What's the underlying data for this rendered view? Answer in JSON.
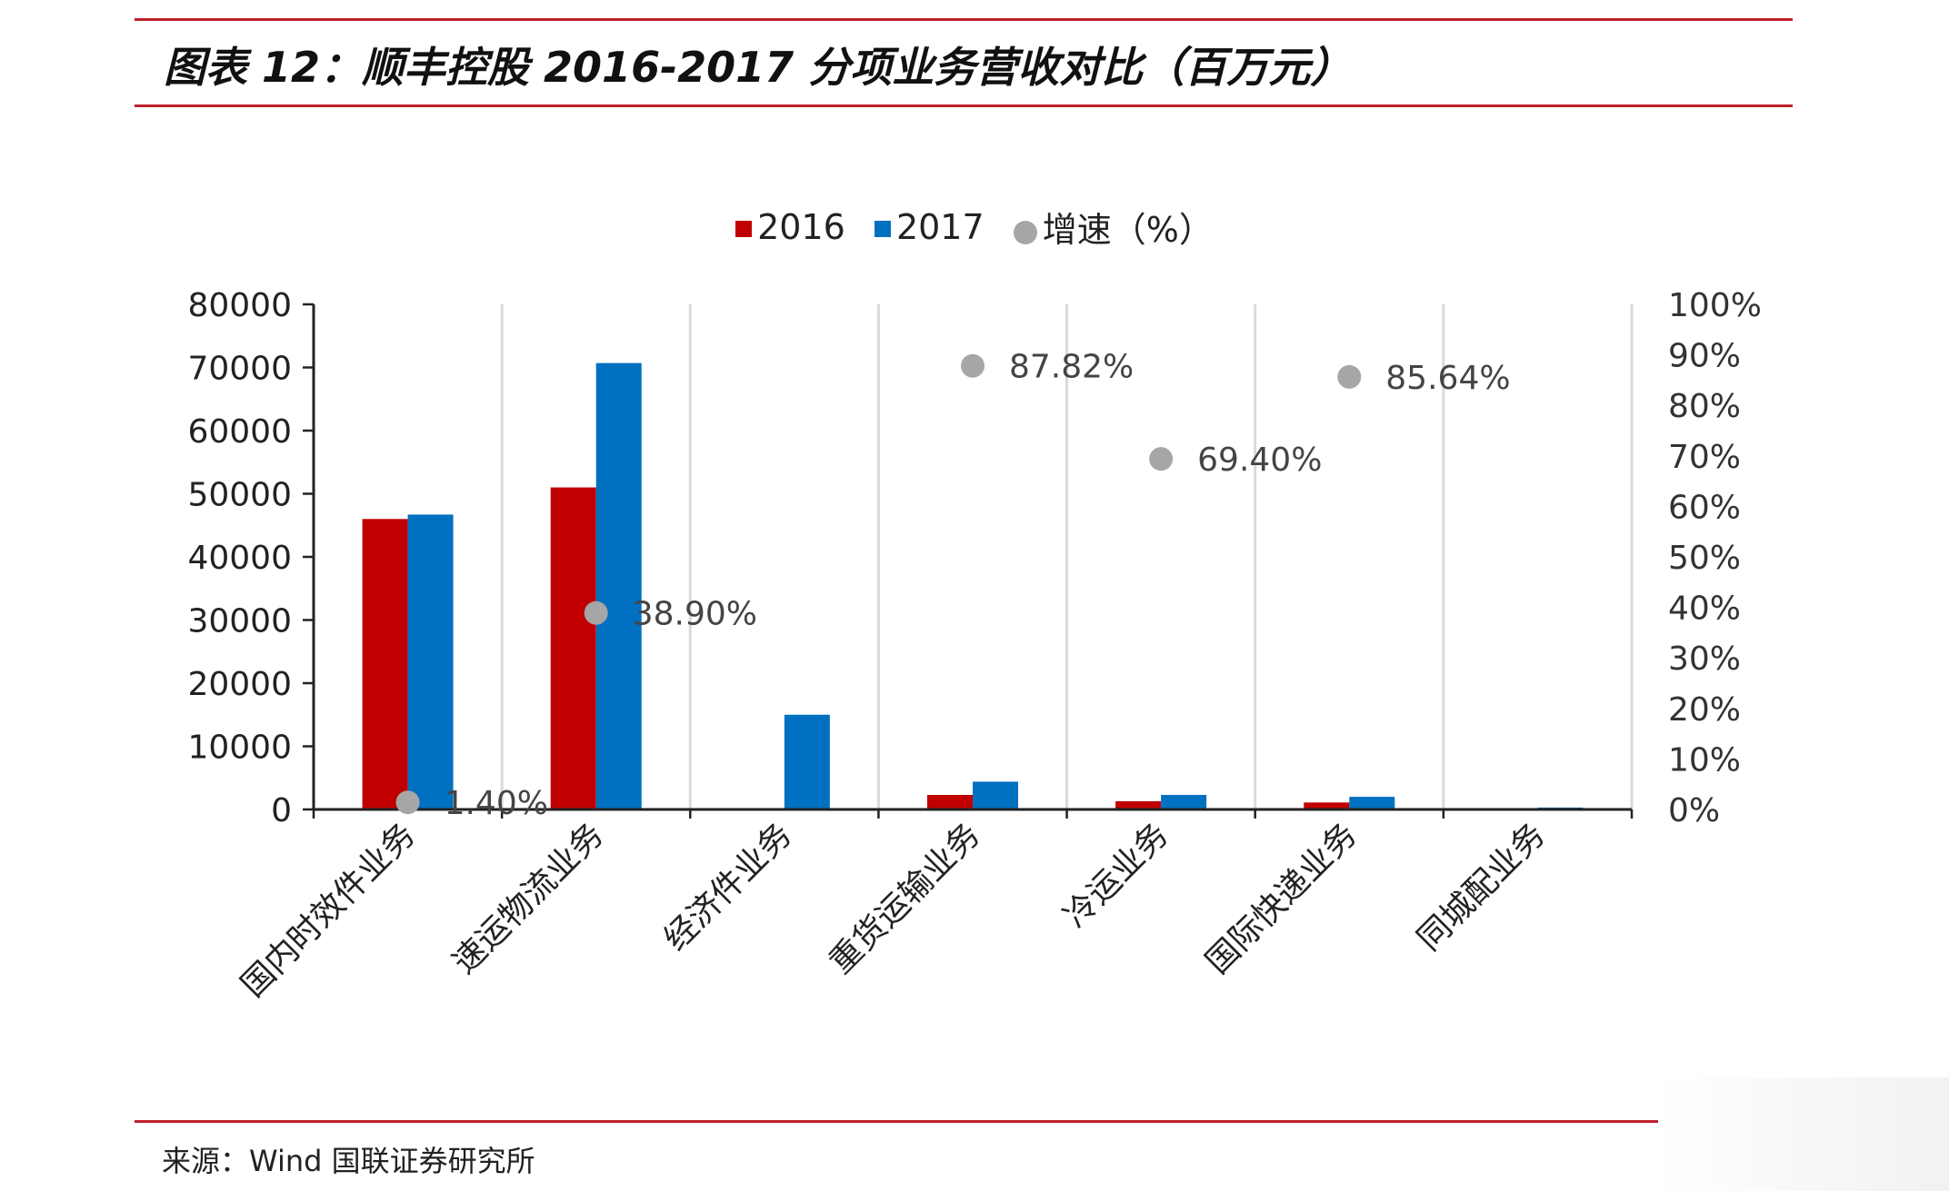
{
  "title": "图表 12：顺丰控股 2016-2017 分项业务营收对比（百万元）",
  "source": "来源：Wind  国联证券研究所",
  "colors": {
    "accent_rule": "#c0202a",
    "s2016": "#c00000",
    "s2017": "#0070c0",
    "growth": "#a6a6a6"
  },
  "chart_data": {
    "type": "bar",
    "categories": [
      "国内时效件业务",
      "速运物流业务",
      "经济件业务",
      "重货运输业务",
      "冷运业务",
      "国际快递业务",
      "同城配业务"
    ],
    "series": [
      {
        "name": "2016",
        "axis": "left",
        "values": [
          46000,
          51000,
          0,
          2300,
          1300,
          1100,
          0
        ]
      },
      {
        "name": "2017",
        "axis": "left",
        "values": [
          46700,
          70700,
          15000,
          4400,
          2300,
          2000,
          300
        ]
      }
    ],
    "growth": {
      "name": "增速（%）",
      "type": "scatter",
      "axis": "right",
      "values": [
        1.4,
        38.9,
        null,
        87.82,
        69.4,
        85.64,
        null
      ],
      "labels": [
        "1.40%",
        "38.90%",
        "",
        "87.82%",
        "69.40%",
        "85.64%",
        ""
      ]
    },
    "y_left": {
      "min": 0,
      "max": 80000,
      "ticks": [
        "0",
        "10000",
        "20000",
        "30000",
        "40000",
        "50000",
        "60000",
        "70000",
        "80000"
      ]
    },
    "y_right": {
      "min": 0,
      "max": 100,
      "ticks": [
        "0%",
        "10%",
        "20%",
        "30%",
        "40%",
        "50%",
        "60%",
        "70%",
        "80%",
        "90%",
        "100%"
      ]
    },
    "grid": "vertical",
    "legend_position": "top"
  }
}
